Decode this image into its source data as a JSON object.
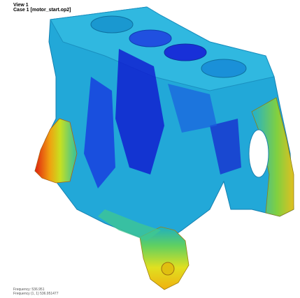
{
  "header": {
    "view": "View 1",
    "case": "Case 1  [motor_start.op2]"
  },
  "footer": {
    "frequency": "Frequency: 536.951",
    "frequency_detail": "Frequency (1, 1) 536.951477"
  }
}
